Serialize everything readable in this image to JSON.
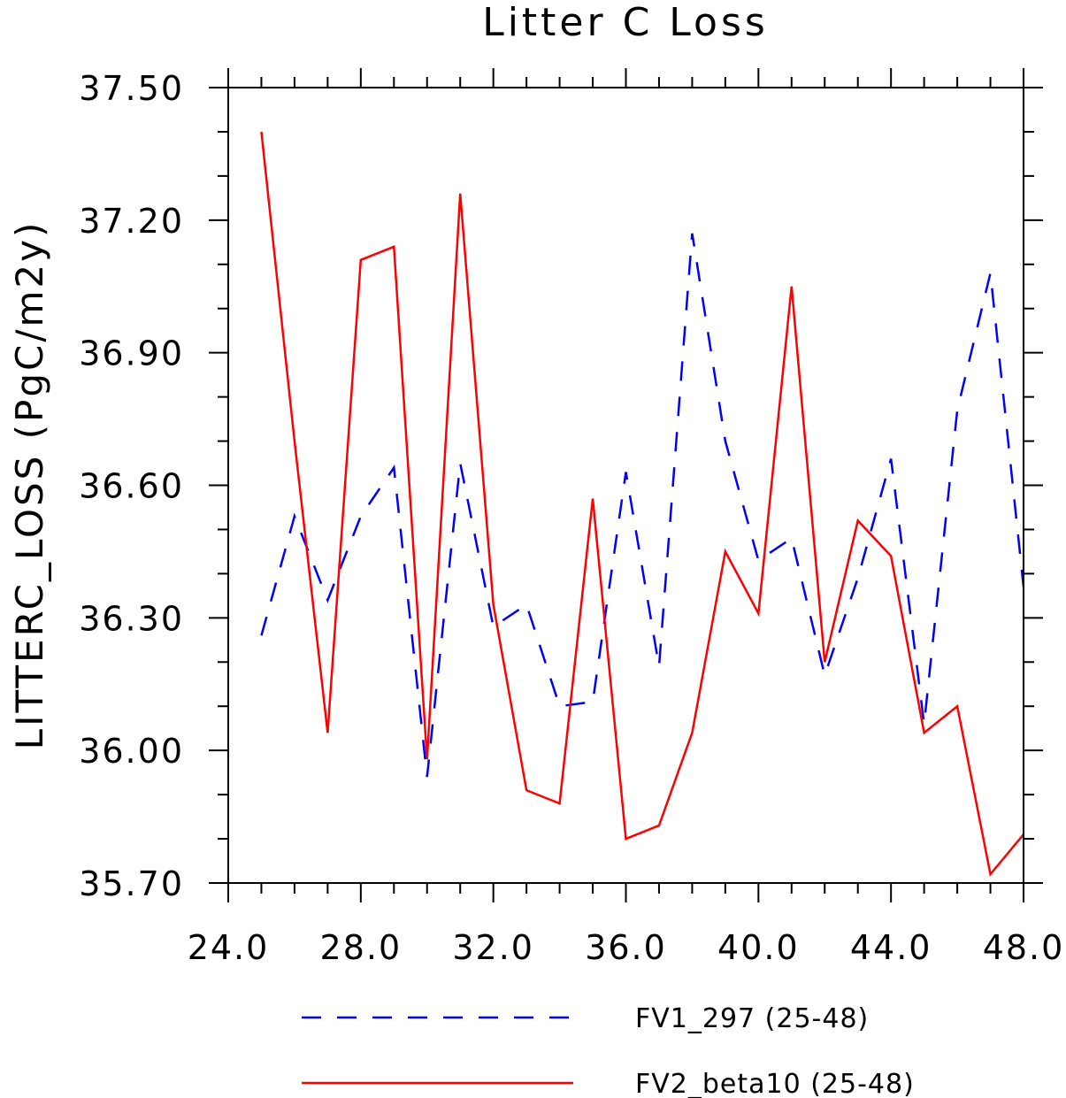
{
  "chart_data": {
    "type": "line",
    "title": "Litter C Loss",
    "xlabel": "",
    "ylabel": "LITTERC_LOSS  (PgC/m2y)",
    "xlim": [
      24,
      48
    ],
    "ylim": [
      35.7,
      37.5
    ],
    "x_ticks": [
      "24.0",
      "28.0",
      "32.0",
      "36.0",
      "40.0",
      "44.0",
      "48.0"
    ],
    "y_ticks": [
      "35.70",
      "36.00",
      "36.30",
      "36.60",
      "36.90",
      "37.20",
      "37.50"
    ],
    "x_tick_values": [
      24,
      28,
      32,
      36,
      40,
      44,
      48
    ],
    "y_tick_values": [
      35.7,
      36.0,
      36.3,
      36.6,
      36.9,
      37.2,
      37.5
    ],
    "x_minor_step": 1,
    "y_minor_step": 0.1,
    "grid": false,
    "legend_position": "bottom",
    "x": [
      25,
      26,
      27,
      28,
      29,
      30,
      31,
      32,
      33,
      34,
      35,
      36,
      37,
      38,
      39,
      40,
      41,
      42,
      43,
      44,
      45,
      46,
      47,
      48
    ],
    "series": [
      {
        "name": "FV1_297 (25-48)",
        "color": "#0000ff",
        "dash": "dashed",
        "values": [
          36.26,
          36.53,
          36.34,
          36.53,
          36.64,
          35.94,
          36.65,
          36.28,
          36.33,
          36.1,
          36.11,
          36.63,
          36.19,
          37.17,
          36.7,
          36.43,
          36.48,
          36.17,
          36.39,
          36.66,
          36.06,
          36.77,
          37.08,
          36.37
        ]
      },
      {
        "name": "FV2_beta10 (25-48)",
        "color": "#ff0000",
        "dash": "solid",
        "values": [
          37.4,
          36.7,
          36.04,
          37.11,
          37.14,
          35.98,
          37.26,
          36.33,
          35.91,
          35.88,
          36.57,
          35.8,
          35.83,
          36.04,
          36.45,
          36.31,
          37.05,
          36.2,
          36.52,
          36.44,
          36.04,
          36.1,
          35.72,
          35.81
        ]
      }
    ]
  }
}
